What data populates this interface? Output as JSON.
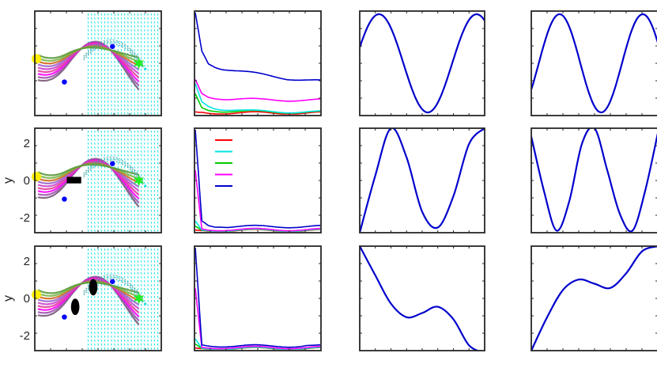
{
  "figure": {
    "y_axis_label": "y",
    "row_ticks": [
      "2",
      "0",
      "-2"
    ]
  },
  "chart_data": [
    {
      "type": "line",
      "panel": "trajectory-row1",
      "ylim": [
        -2.8,
        2.8
      ],
      "xlim": [
        0,
        1
      ],
      "show_y_ticks": false,
      "obstacles": [],
      "start": [
        0.0,
        0.2
      ],
      "goal": [
        0.84,
        0.0
      ],
      "via_points": [
        [
          0.22,
          -1.0
        ],
        [
          0.62,
          0.9
        ]
      ]
    },
    {
      "type": "line",
      "panel": "cost-row1",
      "scale_max": 1.0,
      "legend": false,
      "series": [
        {
          "color": "#0000cc",
          "values": [
            1.0,
            0.62,
            0.5,
            0.47,
            0.45,
            0.44,
            0.43,
            0.42,
            0.41,
            0.4,
            0.39,
            0.38,
            0.37,
            0.36,
            0.35,
            0.345,
            0.34,
            0.335,
            0.33,
            0.325
          ]
        },
        {
          "color": "#ff00ff",
          "values": [
            0.34,
            0.2,
            0.17,
            0.16,
            0.155,
            0.15,
            0.148,
            0.146,
            0.144,
            0.142,
            0.14,
            0.14,
            0.139,
            0.139,
            0.138,
            0.138,
            0.138,
            0.137,
            0.137,
            0.137
          ]
        },
        {
          "color": "#00e5e5",
          "values": [
            0.3,
            0.12,
            0.08,
            0.06,
            0.05,
            0.045,
            0.04,
            0.035,
            0.03,
            0.028,
            0.026,
            0.025,
            0.024,
            0.023,
            0.022,
            0.022,
            0.021,
            0.021,
            0.02,
            0.02
          ]
        },
        {
          "color": "#00cc00",
          "values": [
            0.2,
            0.06,
            0.04,
            0.035,
            0.03,
            0.028,
            0.026,
            0.025,
            0.024,
            0.023,
            0.022,
            0.021,
            0.02,
            0.02,
            0.02,
            0.019,
            0.019,
            0.019,
            0.018,
            0.018
          ]
        },
        {
          "color": "#ff0000",
          "values": [
            0.02,
            0.015,
            0.012,
            0.011,
            0.01,
            0.01,
            0.01,
            0.01,
            0.01,
            0.01,
            0.01,
            0.01,
            0.01,
            0.01,
            0.01,
            0.01,
            0.01,
            0.01,
            0.01,
            0.01
          ]
        }
      ]
    },
    {
      "type": "line",
      "panel": "component1-row1",
      "phase": 0.15,
      "freq": 1.6,
      "damp": 0.0,
      "color": "#0000cc"
    },
    {
      "type": "line",
      "panel": "component2-row1",
      "phase": 2.6,
      "freq": 1.9,
      "damp": 0.0,
      "color": "#0000cc"
    },
    {
      "type": "line",
      "panel": "trajectory-row2",
      "ylim": [
        -2.8,
        2.8
      ],
      "xlim": [
        0,
        1
      ],
      "show_y_ticks": true,
      "obstacles": [
        {
          "shape": "rect",
          "x": 0.3,
          "y": 0.0,
          "w": 0.12,
          "h": 0.35
        }
      ],
      "start": [
        0.0,
        0.2
      ],
      "goal": [
        0.84,
        0.0
      ],
      "via_points": [
        [
          0.22,
          -1.0
        ],
        [
          0.62,
          0.9
        ]
      ]
    },
    {
      "type": "line",
      "panel": "cost-row2",
      "scale_max": 1.0,
      "legend": true,
      "legend_colors": [
        "#ff0000",
        "#00e5e5",
        "#00cc00",
        "#ff00ff",
        "#0000cc"
      ],
      "series": [
        {
          "color": "#0000cc",
          "values": [
            1.0,
            0.1,
            0.06,
            0.05,
            0.05,
            0.045,
            0.045,
            0.045,
            0.045,
            0.045,
            0.045,
            0.045,
            0.045,
            0.045,
            0.045,
            0.045,
            0.045,
            0.045,
            0.045,
            0.045
          ]
        },
        {
          "color": "#ff00ff",
          "values": [
            0.6,
            0.02,
            0.015,
            0.015,
            0.015,
            0.015,
            0.015,
            0.015,
            0.015,
            0.015,
            0.015,
            0.015,
            0.015,
            0.015,
            0.015,
            0.015,
            0.015,
            0.015,
            0.015,
            0.015
          ]
        },
        {
          "color": "#00e5e5",
          "values": [
            0.1,
            0.01,
            0.01,
            0.01,
            0.01,
            0.01,
            0.01,
            0.01,
            0.01,
            0.01,
            0.01,
            0.01,
            0.01,
            0.01,
            0.01,
            0.01,
            0.01,
            0.01,
            0.01,
            0.01
          ]
        },
        {
          "color": "#00cc00",
          "values": [
            0.05,
            0.008,
            0.008,
            0.008,
            0.008,
            0.008,
            0.008,
            0.008,
            0.008,
            0.008,
            0.008,
            0.008,
            0.008,
            0.008,
            0.008,
            0.008,
            0.008,
            0.008,
            0.008,
            0.008
          ]
        },
        {
          "color": "#ff0000",
          "values": [
            0.01,
            0.005,
            0.005,
            0.005,
            0.005,
            0.005,
            0.005,
            0.005,
            0.005,
            0.005,
            0.005,
            0.005,
            0.005,
            0.005,
            0.005,
            0.005,
            0.005,
            0.005,
            0.005,
            0.005
          ]
        }
      ]
    },
    {
      "type": "line",
      "panel": "component1-row2",
      "phase": -0.05,
      "freq": 2.1,
      "damp": 0.0,
      "color": "#0000cc",
      "custom": [
        0.0,
        0.55,
        1.0,
        0.72,
        0.2,
        0.05,
        0.35,
        0.85,
        1.0
      ]
    },
    {
      "type": "line",
      "panel": "component2-row2",
      "color": "#0000cc",
      "custom": [
        0.92,
        0.4,
        0.02,
        0.3,
        0.85,
        1.0,
        0.6,
        0.18,
        0.02,
        0.4,
        0.95
      ]
    },
    {
      "type": "line",
      "panel": "trajectory-row3",
      "ylim": [
        -2.8,
        2.8
      ],
      "xlim": [
        0,
        1
      ],
      "show_y_ticks": true,
      "obstacles": [
        {
          "shape": "ellipse",
          "x": 0.31,
          "y": -0.45,
          "w": 0.07,
          "h": 0.8
        },
        {
          "shape": "ellipse",
          "x": 0.46,
          "y": 0.6,
          "w": 0.07,
          "h": 0.8
        }
      ],
      "start": [
        0.0,
        0.2
      ],
      "goal": [
        0.84,
        0.0
      ],
      "via_points": [
        [
          0.22,
          -1.0
        ],
        [
          0.62,
          0.9
        ]
      ]
    },
    {
      "type": "line",
      "panel": "cost-row3",
      "scale_max": 1.0,
      "legend": false,
      "series": [
        {
          "color": "#0000cc",
          "values": [
            1.0,
            0.04,
            0.035,
            0.033,
            0.032,
            0.031,
            0.03,
            0.03,
            0.03,
            0.03,
            0.03,
            0.03,
            0.03,
            0.03,
            0.03,
            0.03,
            0.03,
            0.035,
            0.03,
            0.03
          ]
        },
        {
          "color": "#ff00ff",
          "values": [
            0.6,
            0.015,
            0.015,
            0.015,
            0.015,
            0.015,
            0.015,
            0.015,
            0.015,
            0.015,
            0.015,
            0.015,
            0.015,
            0.015,
            0.015,
            0.015,
            0.015,
            0.015,
            0.015,
            0.015
          ]
        },
        {
          "color": "#00e5e5",
          "values": [
            0.1,
            0.008,
            0.008,
            0.008,
            0.008,
            0.008,
            0.008,
            0.008,
            0.008,
            0.008,
            0.008,
            0.008,
            0.008,
            0.008,
            0.008,
            0.008,
            0.008,
            0.008,
            0.008,
            0.008
          ]
        },
        {
          "color": "#00cc00",
          "values": [
            0.05,
            0.006,
            0.006,
            0.006,
            0.006,
            0.006,
            0.006,
            0.006,
            0.006,
            0.006,
            0.006,
            0.006,
            0.006,
            0.006,
            0.006,
            0.006,
            0.006,
            0.006,
            0.006,
            0.006
          ]
        },
        {
          "color": "#ff0000",
          "values": [
            0.01,
            0.004,
            0.004,
            0.004,
            0.004,
            0.004,
            0.004,
            0.004,
            0.004,
            0.004,
            0.004,
            0.004,
            0.004,
            0.004,
            0.004,
            0.004,
            0.004,
            0.004,
            0.004,
            0.004
          ]
        }
      ]
    },
    {
      "type": "line",
      "panel": "component1-row3",
      "color": "#0000cc",
      "custom": [
        1.0,
        0.72,
        0.45,
        0.32,
        0.36,
        0.42,
        0.3,
        0.05,
        -0.02
      ]
    },
    {
      "type": "line",
      "panel": "component2-row3",
      "color": "#0000cc",
      "custom": [
        0.0,
        0.32,
        0.58,
        0.68,
        0.64,
        0.6,
        0.74,
        0.95,
        1.0
      ]
    }
  ]
}
